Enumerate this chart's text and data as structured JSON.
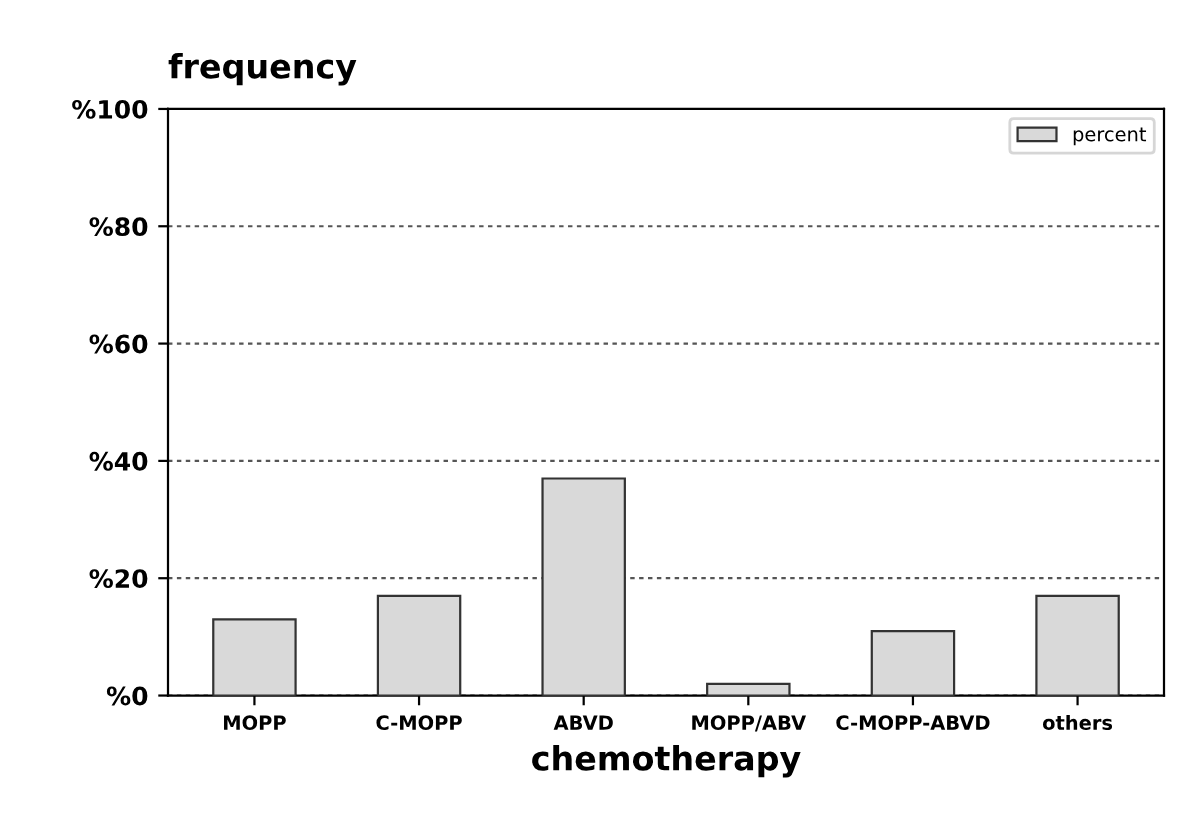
{
  "chart_data": {
    "type": "bar",
    "title": "frequency",
    "xlabel": "chemotherapy",
    "categories": [
      "MOPP",
      "C-MOPP",
      "ABVD",
      "MOPP/ABV",
      "C-MOPP-ABVD",
      "others"
    ],
    "series": [
      {
        "name": "percent",
        "color": "#d9d9d9",
        "values": [
          13,
          17,
          37,
          2,
          11,
          17
        ]
      }
    ],
    "ylim": [
      0,
      100
    ],
    "yticks": [
      {
        "value": 0,
        "label": "%0"
      },
      {
        "value": 20,
        "label": "%20"
      },
      {
        "value": 40,
        "label": "%40"
      },
      {
        "value": 60,
        "label": "%60"
      },
      {
        "value": 80,
        "label": "%80"
      },
      {
        "value": 100,
        "label": "%100"
      }
    ],
    "grid": "y",
    "legend": "top right"
  }
}
